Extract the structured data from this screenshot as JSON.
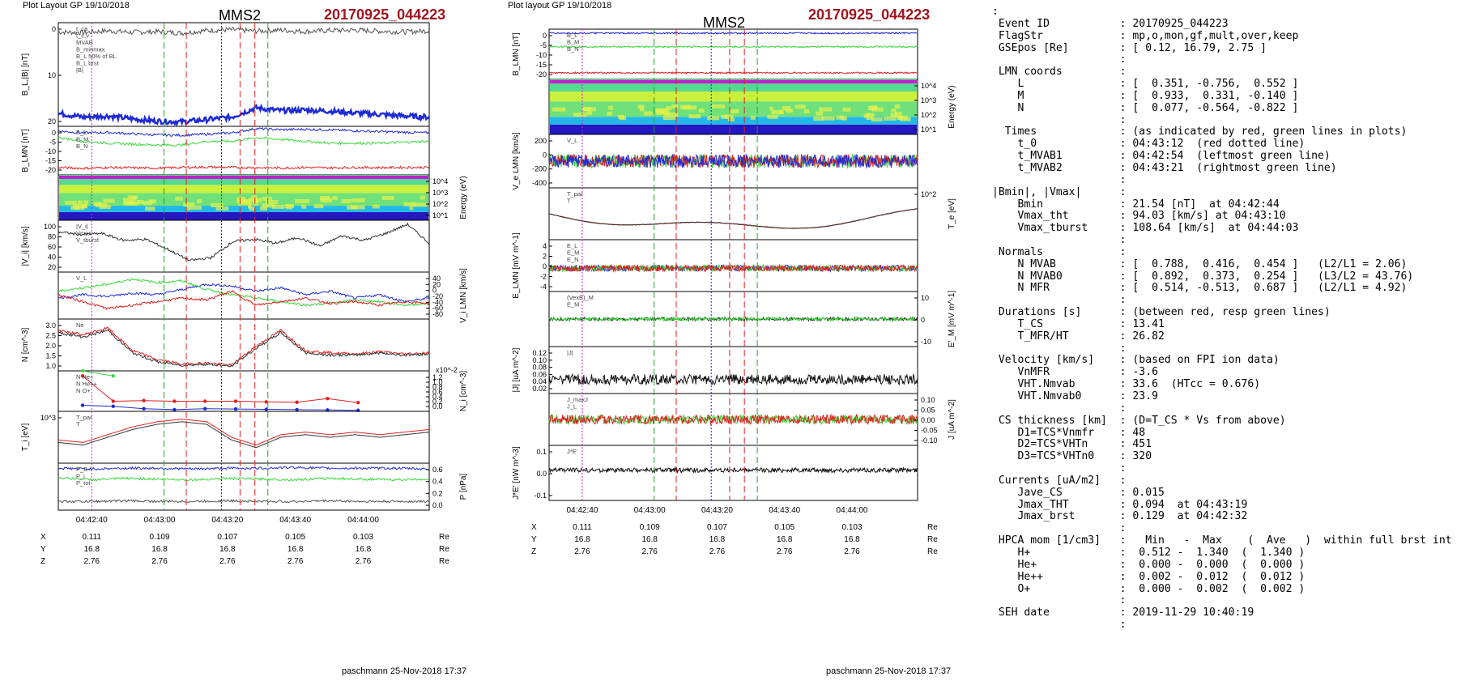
{
  "left_figure": {
    "header": "Plot Layout GP 19/10/2018",
    "spacecraft": "MMS2",
    "event": "20170925_044223",
    "footer": "paschmann 25-Nov-2018 17:37"
  },
  "right_figure": {
    "header": "Plot layout GP 19/10/2018",
    "spacecraft": "MMS2",
    "event": "20170925_044223",
    "footer": "paschmann 25-Nov-2018 17:37"
  },
  "chart_data": [
    {
      "type": "line",
      "panel_id": "left",
      "time_ticks": [
        "04:42:40",
        "04:43:00",
        "04:43:20",
        "04:43:40",
        "04:44:00"
      ],
      "orbit_table": [
        {
          "label": "X",
          "values": [
            "0.111",
            "0.109",
            "0.107",
            "0.105",
            "0.103"
          ],
          "unit": "Re"
        },
        {
          "label": "Y",
          "values": [
            "16.8",
            "16.8",
            "16.8",
            "16.8",
            "16.8"
          ],
          "unit": "Re"
        },
        {
          "label": "Z",
          "values": [
            "2.76",
            "2.76",
            "2.76",
            "2.76",
            "2.76"
          ],
          "unit": "Re"
        }
      ],
      "marker_times": {
        "red": [
          "04:43:00",
          "04:43:12",
          "04:43:14"
        ],
        "green": [
          "04:42:54",
          "04:43:21"
        ]
      },
      "panels": [
        {
          "ylabel": "B_L,|B| [nT]",
          "ylabel_side": "left",
          "ylim": [
            -4,
            24
          ],
          "ticks": [
            "0",
            "10",
            "20"
          ],
          "legend": [
            "t_ca",
            "t_c,v",
            "MVAB",
            "B_minmax",
            "B_L 50% of BL",
            "B_L brst",
            "|B|"
          ],
          "series": [
            {
              "name": "|B|",
              "color": "#555555",
              "values": [
                21.5,
                21.3,
                21.8,
                21.4,
                21.6,
                21.2,
                21.9,
                22.1,
                21.7,
                22.0,
                21.6,
                21.9,
                22.0,
                21.7,
                21.5,
                21.8
              ]
            },
            {
              "name": "B_L brst",
              "color": "#1f2bd6",
              "values": [
                -0.5,
                -1.5,
                -1.2,
                -2.0,
                -2.6,
                -2.8,
                -2.2,
                -1.5,
                1.0,
                0.2,
                0.4,
                0.1,
                -0.4,
                -0.8,
                -1.2,
                -1.5
              ]
            }
          ]
        },
        {
          "ylabel": "B_LMN [nT]",
          "ylabel_side": "left",
          "ylim": [
            -24,
            2
          ],
          "ticks": [
            "0",
            "-5",
            "-10",
            "-15",
            "-20"
          ],
          "legend": [
            "B_L",
            "B_M",
            "B_N"
          ],
          "series": [
            {
              "name": "B_L",
              "color": "#1f2bd6",
              "values": [
                -0.5,
                -1.5,
                -1.3,
                -2.0,
                -2.6,
                -2.8,
                -2.2,
                -1.5,
                0.8,
                0.2,
                0.4,
                0.1,
                -0.4,
                -0.8,
                -1.2,
                -1.5
              ]
            },
            {
              "name": "B_M",
              "color": "#3ad63a",
              "values": [
                -4,
                -6,
                -7,
                -7.5,
                -8,
                -8,
                -6,
                -6,
                -4,
                -5,
                -6,
                -7,
                -7,
                -7,
                -6.5,
                -6
              ]
            },
            {
              "name": "B_N",
              "color": "#e02020",
              "values": [
                -20,
                -20.5,
                -20,
                -20.2,
                -20.4,
                -20,
                -19.8,
                -20,
                -20.1,
                -20.3,
                -20,
                -20.2,
                -20,
                -20.1,
                -20,
                -20
              ]
            }
          ]
        },
        {
          "ylabel": "Energy (eV)",
          "ylabel_side": "right",
          "type": "heatmap",
          "ticks": [
            "10^4",
            "10^3",
            "10^2",
            "10^1"
          ]
        },
        {
          "ylabel": "|V_i| [km/s]",
          "ylabel_side": "left",
          "ylim": [
            15,
            105
          ],
          "ticks": [
            "100",
            "80",
            "60",
            "40",
            "20"
          ],
          "legend": [
            "|V_i|",
            "Vmax",
            "V_tburst"
          ],
          "series": [
            {
              "name": "|V_i|",
              "color": "#333333",
              "values": [
                85,
                80,
                82,
                70,
                72,
                55,
                35,
                40,
                68,
                72,
                65,
                75,
                60,
                78,
                70,
                82,
                98,
                65
              ]
            }
          ]
        },
        {
          "ylabel": "V_i LMN [km/s]",
          "ylabel_side": "right",
          "ylim": [
            -90,
            45
          ],
          "ticks": [
            "40",
            "20",
            "0",
            "-20",
            "-40",
            "-60",
            "-80"
          ],
          "legend": [
            "V_L"
          ],
          "series": [
            {
              "name": "V_L",
              "color": "#1f2bd6",
              "values": [
                -30,
                -20,
                -25,
                -15,
                -20,
                -5,
                10,
                5,
                -10,
                0,
                -20,
                -10,
                -30,
                -20,
                -40,
                -30
              ]
            },
            {
              "name": "V_M",
              "color": "#3ad63a",
              "values": [
                -10,
                0,
                10,
                25,
                15,
                20,
                -5,
                -20,
                -30,
                -40,
                -50,
                -45,
                -35,
                -40,
                -50,
                -45
              ]
            },
            {
              "name": "V_N",
              "color": "#e02020",
              "values": [
                -20,
                -40,
                -60,
                -50,
                -40,
                -30,
                -35,
                -10,
                -50,
                -40,
                -30,
                -45,
                -40,
                -50,
                -40,
                -45
              ]
            }
          ]
        },
        {
          "ylabel": "N [cm^-3]",
          "ylabel_side": "left",
          "ylim": [
            0.7,
            3.0
          ],
          "ticks": [
            "3.0",
            "2.5",
            "2.0",
            "1.5",
            "1.0"
          ],
          "legend": [
            "Ne"
          ],
          "series": [
            {
              "name": "Ne",
              "color": "#e02020",
              "values": [
                2.5,
                2.3,
                2.6,
                1.6,
                1.2,
                1.0,
                1.05,
                0.95,
                1.8,
                2.5,
                1.6,
                1.5,
                1.45,
                1.55,
                1.45,
                1.5
              ]
            },
            {
              "name": "Ni",
              "color": "#333333",
              "values": [
                2.4,
                2.2,
                2.5,
                1.5,
                1.1,
                0.95,
                1.0,
                0.9,
                1.7,
                2.4,
                1.5,
                1.4,
                1.4,
                1.5,
                1.4,
                1.45
              ]
            }
          ]
        },
        {
          "ylabel": "N_i [cm^-3]",
          "ylabel_side": "right",
          "ylim": [
            0,
            1.2
          ],
          "ticks": [
            "1.2",
            "1.0",
            "0.8",
            "0.6",
            "0.4",
            "0.2",
            "0.0"
          ],
          "multiplier": "x10^-2",
          "legend": [
            "N He+",
            "N He++",
            "N O+"
          ],
          "series": [
            {
              "name": "He+",
              "color": "#3ad63a",
              "values": [
                1.2,
                1.05
              ]
            },
            {
              "name": "He++",
              "color": "#e02020",
              "values": [
                1.05,
                0.3,
                0.32,
                0.3,
                0.3,
                0.3,
                0.28,
                0.27,
                0.38,
                0.26
              ]
            },
            {
              "name": "O+",
              "color": "#1f2bd6",
              "values": [
                0.18,
                0.15,
                0.08,
                0.05,
                0.08,
                0.07,
                0.06,
                0.05,
                0.04,
                0.03
              ]
            }
          ]
        },
        {
          "ylabel": "T_i [eV]",
          "ylabel_side": "left",
          "ticks": [
            "10^3"
          ],
          "legend": [
            "T_par",
            "T"
          ],
          "series": [
            {
              "name": "T_par",
              "color": "#e02020",
              "values": [
                0.45,
                0.4,
                0.55,
                0.7,
                0.8,
                0.85,
                0.8,
                0.5,
                0.35,
                0.55,
                0.6,
                0.55,
                0.6,
                0.55,
                0.6,
                0.65
              ]
            },
            {
              "name": "T",
              "color": "#333333",
              "values": [
                0.4,
                0.35,
                0.5,
                0.65,
                0.75,
                0.8,
                0.75,
                0.45,
                0.3,
                0.5,
                0.55,
                0.5,
                0.55,
                0.5,
                0.55,
                0.6
              ]
            }
          ]
        },
        {
          "ylabel": "P [nPa]",
          "ylabel_side": "right",
          "ylim": [
            0,
            0.65
          ],
          "ticks": [
            "0.6",
            "0.4",
            "0.2",
            "0.0"
          ],
          "legend": [
            "P_B",
            "P_i",
            "P_tot"
          ],
          "series": [
            {
              "name": "P_B",
              "color": "#1f2bd6",
              "values": [
                0.58,
                0.57,
                0.58,
                0.58,
                0.57,
                0.58,
                0.58,
                0.59,
                0.58,
                0.58,
                0.58,
                0.57
              ]
            },
            {
              "name": "P_i",
              "color": "#3ad63a",
              "values": [
                0.45,
                0.42,
                0.44,
                0.43,
                0.42,
                0.44,
                0.43,
                0.42,
                0.44,
                0.43,
                0.42,
                0.43
              ]
            },
            {
              "name": "P_tot",
              "color": "#555555",
              "values": [
                0.12,
                0.12,
                0.13,
                0.12,
                0.12,
                0.13,
                0.12,
                0.12,
                0.13,
                0.12,
                0.12,
                0.12
              ]
            }
          ]
        }
      ]
    },
    {
      "type": "line",
      "panel_id": "right",
      "time_ticks": [
        "04:42:40",
        "04:43:00",
        "04:43:20",
        "04:43:40",
        "04:44:00"
      ],
      "orbit_table": [
        {
          "label": "X",
          "values": [
            "0.111",
            "0.109",
            "0.107",
            "0.105",
            "0.103"
          ],
          "unit": "Re"
        },
        {
          "label": "Y",
          "values": [
            "16.8",
            "16.8",
            "16.8",
            "16.8",
            "16.8"
          ],
          "unit": "Re"
        },
        {
          "label": "Z",
          "values": [
            "2.76",
            "2.76",
            "2.76",
            "2.76",
            "2.76"
          ],
          "unit": "Re"
        }
      ],
      "panels": [
        {
          "ylabel": "B_LMN [nT]",
          "ylabel_side": "left",
          "ylim": [
            -24,
            2
          ],
          "ticks": [
            "0",
            "-5",
            "-10",
            "-15",
            "-20"
          ],
          "legend": [
            "B_L",
            "B_M",
            "B_N"
          ]
        },
        {
          "ylabel": "Energy (eV)",
          "ylabel_side": "right",
          "type": "heatmap",
          "ticks": [
            "10^4",
            "10^3",
            "10^2",
            "10^1"
          ]
        },
        {
          "ylabel": "V_e LMN [km/s]",
          "ylabel_side": "left",
          "ylim": [
            -500,
            300
          ],
          "ticks": [
            "200",
            "0",
            "-200",
            "-400"
          ],
          "legend": [
            "V_L"
          ]
        },
        {
          "ylabel": "T_e [eV]",
          "ylabel_side": "right",
          "ticks": [
            "10^2"
          ],
          "legend": [
            "T_par",
            "T"
          ]
        },
        {
          "ylabel": "E_LMN [mV m^-1]",
          "ylabel_side": "left",
          "ylim": [
            -6,
            6
          ],
          "ticks": [
            "4",
            "2",
            "0",
            "-2",
            "-4"
          ],
          "legend": [
            "E_L",
            "E_M",
            "E_N"
          ]
        },
        {
          "ylabel": "E'_M [mV m^-1]",
          "ylabel_side": "right",
          "ylim": [
            -15,
            15
          ],
          "ticks": [
            "10",
            "0",
            "-10"
          ],
          "legend": [
            "(VexB)_M",
            "E_M"
          ]
        },
        {
          "ylabel": "|J| [uA m^-2]",
          "ylabel_side": "left",
          "ylim": [
            0,
            0.13
          ],
          "ticks": [
            "0.12",
            "0.10",
            "0.08",
            "0.06",
            "0.04",
            "0.02"
          ],
          "legend": [
            "|J|"
          ]
        },
        {
          "ylabel": "J [uA m^-2]",
          "ylabel_side": "right",
          "ylim": [
            -0.12,
            0.12
          ],
          "ticks": [
            "0.10",
            "0.05",
            "0.00",
            "-0.05",
            "-0.10"
          ],
          "legend": [
            "J_maxJ",
            "J_L"
          ]
        },
        {
          "ylabel": "J*E' [nW m^-3]",
          "ylabel_side": "left",
          "ylim": [
            -0.15,
            0.15
          ],
          "ticks": [
            "0.1",
            "0.0",
            "-0.1"
          ],
          "legend": [
            "J*E'"
          ]
        }
      ]
    }
  ],
  "info_lines": [
    ":",
    " Event ID           : 20170925_044223",
    " FlagStr            : mp,o,mon,gf,mult,over,keep",
    " GSEpos [Re]        : [ 0.12, 16.79, 2.75 ]",
    "                    :",
    " LMN coords         :",
    "    L               : [  0.351, -0.756,  0.552 ]",
    "    M               : [  0.933,  0.331, -0.140 ]",
    "    N               : [  0.077, -0.564, -0.822 ]",
    "                    :",
    "  Times             : (as indicated by red, green lines in plots)",
    "    t_0             : 04:43:12  (red dotted line)",
    "    t_MVAB1         : 04:42:54  (leftmost green line)",
    "    t_MVAB2         : 04:43:21  (rightmost green line)",
    "                    :",
    "|Bmin|, |Vmax|      :",
    "    Bmin            : 21.54 [nT]  at 04:42:44",
    "    Vmax_tht        : 94.03 [km/s] at 04:43:10",
    "    Vmax_tburst     : 108.64 [km/s]  at 04:44:03",
    "                    :",
    " Normals            :",
    "    N MVAB          : [  0.788,  0.416,  0.454 ]   (L2/L1 = 2.06)",
    "    N MVAB0         : [  0.892,  0.373,  0.254 ]   (L3/L2 = 43.76)",
    "    N MFR           : [  0.514, -0.513,  0.687 ]   (L2/L1 = 4.92)",
    "                    :",
    " Durations [s]      : (between red, resp green lines)",
    "    T_CS            : 13.41",
    "    T_MFR/HT        : 26.82",
    "                    :",
    " Velocity [km/s]    : (based on FPI ion data)",
    "    VnMFR           : -3.6",
    "    VHT.Nmvab       : 33.6  (HTcc = 0.676)",
    "    VHT.Nmvab0      : 23.9",
    "                    :",
    " CS thickness [km]  : (D=T_CS * Vs from above)",
    "    D1=TCS*Vnmfr    : 48",
    "    D2=TCS*VHTn     : 451",
    "    D3=TCS*VHTn0    : 320",
    "                    :",
    " Currents [uA/m2]   :",
    "    Jave_CS         : 0.015",
    "    Jmax_THT        : 0.094  at 04:43:19",
    "    Jmax_brst       : 0.129  at 04:42:32",
    "                    :",
    " HPCA mom [1/cm3]   :   Min   -  Max    (  Ave   )  within full brst int",
    "    H+              :  0.512 -  1.340  (  1.340 )",
    "    He+             :  0.000 -  0.000  (  0.000 )",
    "    He++            :  0.002 -  0.012  (  0.012 )",
    "    O+              :  0.000 -  0.002  (  0.002 )",
    "                    :",
    " SEH date           : 2019-11-29 10:40:19",
    "                    :"
  ]
}
